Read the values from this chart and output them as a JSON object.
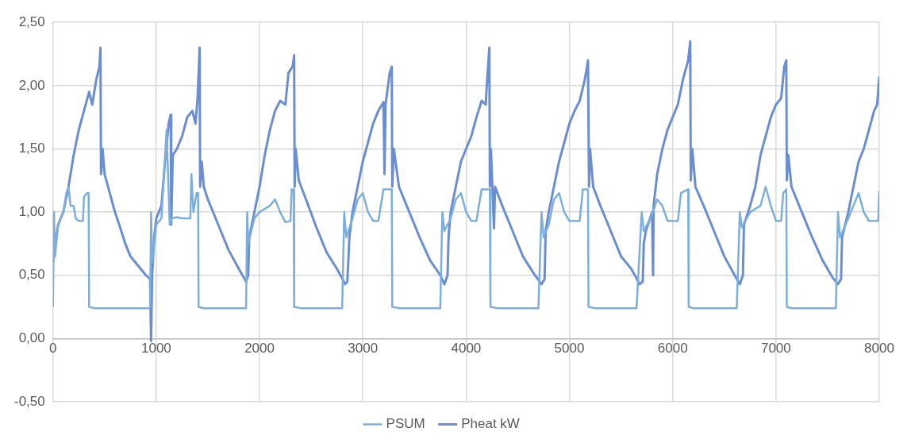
{
  "chart_data": {
    "type": "line",
    "xlim": [
      0,
      8000
    ],
    "xticks": [
      0,
      1000,
      2000,
      3000,
      4000,
      5000,
      6000,
      7000,
      8000
    ],
    "ylim": [
      -0.5,
      2.5
    ],
    "yticks": [
      {
        "value": -0.5,
        "label": "-0,50"
      },
      {
        "value": 0,
        "label": "0,00"
      },
      {
        "value": 0.5,
        "label": "0,50"
      },
      {
        "value": 1,
        "label": "1,00"
      },
      {
        "value": 1.5,
        "label": "1,50"
      },
      {
        "value": 2,
        "label": "2,00"
      },
      {
        "value": 2.5,
        "label": "2,50"
      }
    ],
    "grid": true,
    "legend": "bottom",
    "series": [
      {
        "name": "PSUM",
        "color": "#7cafdd",
        "x": [
          0,
          10,
          20,
          50,
          100,
          130,
          150,
          170,
          200,
          220,
          250,
          290,
          300,
          330,
          345,
          350,
          400,
          940,
          950,
          960,
          1000,
          1050,
          1100,
          1130,
          1150,
          1200,
          1250,
          1330,
          1340,
          1360,
          1390,
          1405,
          1410,
          1450,
          1870,
          1880,
          1890,
          1950,
          2000,
          2100,
          2150,
          2200,
          2250,
          2300,
          2310,
          2330,
          2335,
          2400,
          2800,
          2820,
          2840,
          2900,
          2950,
          3000,
          3050,
          3100,
          3150,
          3200,
          3280,
          3285,
          3350,
          3750,
          3770,
          3790,
          3850,
          3900,
          3950,
          4000,
          4050,
          4100,
          4150,
          4230,
          4235,
          4300,
          4700,
          4730,
          4750,
          4800,
          4850,
          4900,
          4950,
          5000,
          5100,
          5130,
          5180,
          5185,
          5250,
          5650,
          5700,
          5720,
          5800,
          5850,
          5900,
          5950,
          6050,
          6080,
          6150,
          6155,
          6200,
          6620,
          6650,
          6670,
          6750,
          6850,
          6900,
          6950,
          7000,
          7050,
          7070,
          7100,
          7105,
          7150,
          7580,
          7600,
          7620,
          7700,
          7750,
          7800,
          7850,
          7900,
          7990,
          8000
        ],
        "values": [
          0.25,
          1.0,
          0.65,
          0.9,
          1.0,
          1.15,
          1.2,
          1.05,
          1.05,
          0.95,
          0.93,
          0.93,
          1.12,
          1.15,
          1.15,
          0.25,
          0.24,
          0.24,
          1.0,
          0.6,
          0.9,
          0.95,
          1.65,
          0.9,
          0.95,
          0.96,
          0.95,
          0.95,
          1.3,
          1.0,
          1.15,
          1.15,
          0.25,
          0.24,
          0.24,
          1.0,
          0.75,
          0.95,
          1.0,
          1.05,
          1.1,
          1.0,
          0.92,
          0.93,
          1.18,
          1.18,
          0.25,
          0.24,
          0.24,
          1.0,
          0.8,
          0.95,
          1.1,
          1.15,
          1.0,
          0.93,
          0.93,
          1.18,
          1.18,
          0.25,
          0.24,
          0.24,
          1.0,
          0.85,
          0.95,
          1.1,
          1.15,
          1.0,
          0.93,
          0.93,
          1.18,
          1.18,
          0.25,
          0.24,
          0.24,
          1.0,
          0.8,
          0.9,
          1.1,
          1.15,
          1.0,
          0.93,
          0.93,
          1.18,
          1.18,
          0.25,
          0.24,
          0.24,
          1.0,
          0.85,
          0.98,
          1.1,
          1.05,
          0.93,
          0.93,
          1.15,
          1.18,
          0.25,
          0.24,
          0.24,
          1.0,
          0.88,
          1.0,
          1.05,
          1.2,
          1.05,
          0.93,
          0.93,
          1.15,
          1.18,
          0.25,
          0.24,
          0.24,
          1.0,
          0.8,
          0.95,
          1.05,
          1.15,
          1.0,
          0.93,
          0.93,
          1.17
        ]
      },
      {
        "name": "Pheat kW",
        "color": "#6b8ed0",
        "x": [
          0,
          50,
          100,
          150,
          200,
          250,
          300,
          350,
          380,
          420,
          450,
          460,
          465,
          480,
          500,
          550,
          600,
          650,
          700,
          750,
          800,
          850,
          900,
          940,
          950,
          960,
          980,
          1000,
          1050,
          1080,
          1120,
          1140,
          1145,
          1160,
          1200,
          1250,
          1300,
          1350,
          1380,
          1400,
          1420,
          1425,
          1440,
          1460,
          1500,
          1600,
          1700,
          1800,
          1870,
          1890,
          1900,
          1950,
          2000,
          2050,
          2100,
          2150,
          2200,
          2250,
          2280,
          2320,
          2335,
          2340,
          2350,
          2380,
          2450,
          2550,
          2650,
          2750,
          2830,
          2850,
          2870,
          2900,
          2950,
          3000,
          3050,
          3100,
          3150,
          3200,
          3210,
          3220,
          3260,
          3280,
          3285,
          3300,
          3350,
          3450,
          3550,
          3650,
          3750,
          3790,
          3820,
          3830,
          3850,
          3900,
          3950,
          4000,
          4050,
          4100,
          4150,
          4190,
          4200,
          4225,
          4230,
          4240,
          4270,
          4280,
          4350,
          4450,
          4550,
          4650,
          4730,
          4760,
          4770,
          4800,
          4850,
          4900,
          4950,
          5000,
          5050,
          5100,
          5150,
          5180,
          5190,
          5200,
          5230,
          5300,
          5400,
          5500,
          5600,
          5680,
          5710,
          5720,
          5740,
          5800,
          5810,
          5815,
          5850,
          5900,
          5950,
          6000,
          6050,
          6100,
          6150,
          6170,
          6175,
          6190,
          6220,
          6300,
          6400,
          6500,
          6600,
          6650,
          6680,
          6690,
          6750,
          6800,
          6850,
          6900,
          6950,
          7000,
          7050,
          7080,
          7100,
          7105,
          7120,
          7150,
          7250,
          7350,
          7450,
          7550,
          7600,
          7630,
          7640,
          7700,
          7750,
          7800,
          7850,
          7900,
          7950,
          7980,
          8000
        ],
        "values": [
          0.6,
          0.9,
          1.0,
          1.2,
          1.45,
          1.65,
          1.8,
          1.95,
          1.85,
          2.05,
          2.15,
          2.3,
          1.3,
          1.5,
          1.3,
          1.15,
          1.0,
          0.88,
          0.75,
          0.65,
          0.6,
          0.55,
          0.5,
          0.47,
          -0.02,
          0.5,
          0.8,
          0.95,
          1.05,
          1.35,
          1.7,
          1.77,
          0.9,
          1.45,
          1.5,
          1.6,
          1.75,
          1.8,
          1.7,
          1.9,
          2.3,
          1.2,
          1.4,
          1.2,
          1.1,
          0.9,
          0.7,
          0.55,
          0.45,
          0.5,
          0.8,
          1.0,
          1.2,
          1.45,
          1.65,
          1.8,
          1.88,
          1.85,
          2.1,
          2.15,
          2.24,
          1.2,
          1.5,
          1.25,
          1.1,
          0.88,
          0.68,
          0.55,
          0.43,
          0.45,
          0.8,
          1.0,
          1.2,
          1.4,
          1.55,
          1.7,
          1.8,
          1.87,
          1.3,
          1.85,
          2.1,
          2.15,
          1.2,
          1.5,
          1.2,
          1.0,
          0.8,
          0.62,
          0.5,
          0.43,
          0.5,
          0.8,
          1.0,
          1.2,
          1.4,
          1.5,
          1.6,
          1.75,
          1.88,
          1.85,
          2.0,
          2.3,
          1.2,
          1.5,
          0.87,
          1.2,
          1.05,
          0.85,
          0.65,
          0.52,
          0.43,
          0.47,
          0.85,
          1.0,
          1.2,
          1.4,
          1.55,
          1.7,
          1.8,
          1.88,
          2.05,
          2.2,
          1.2,
          1.5,
          1.2,
          1.05,
          0.85,
          0.65,
          0.55,
          0.43,
          0.45,
          0.75,
          0.85,
          1.0,
          0.5,
          1.05,
          1.3,
          1.5,
          1.65,
          1.75,
          1.85,
          2.05,
          2.2,
          2.35,
          1.25,
          1.5,
          1.2,
          1.05,
          0.85,
          0.65,
          0.5,
          0.43,
          0.5,
          0.9,
          1.05,
          1.2,
          1.45,
          1.6,
          1.75,
          1.85,
          1.9,
          2.15,
          2.2,
          1.25,
          1.45,
          1.2,
          1.0,
          0.8,
          0.62,
          0.48,
          0.43,
          0.47,
          0.8,
          1.0,
          1.2,
          1.4,
          1.5,
          1.65,
          1.8,
          1.85,
          2.07
        ]
      }
    ]
  }
}
